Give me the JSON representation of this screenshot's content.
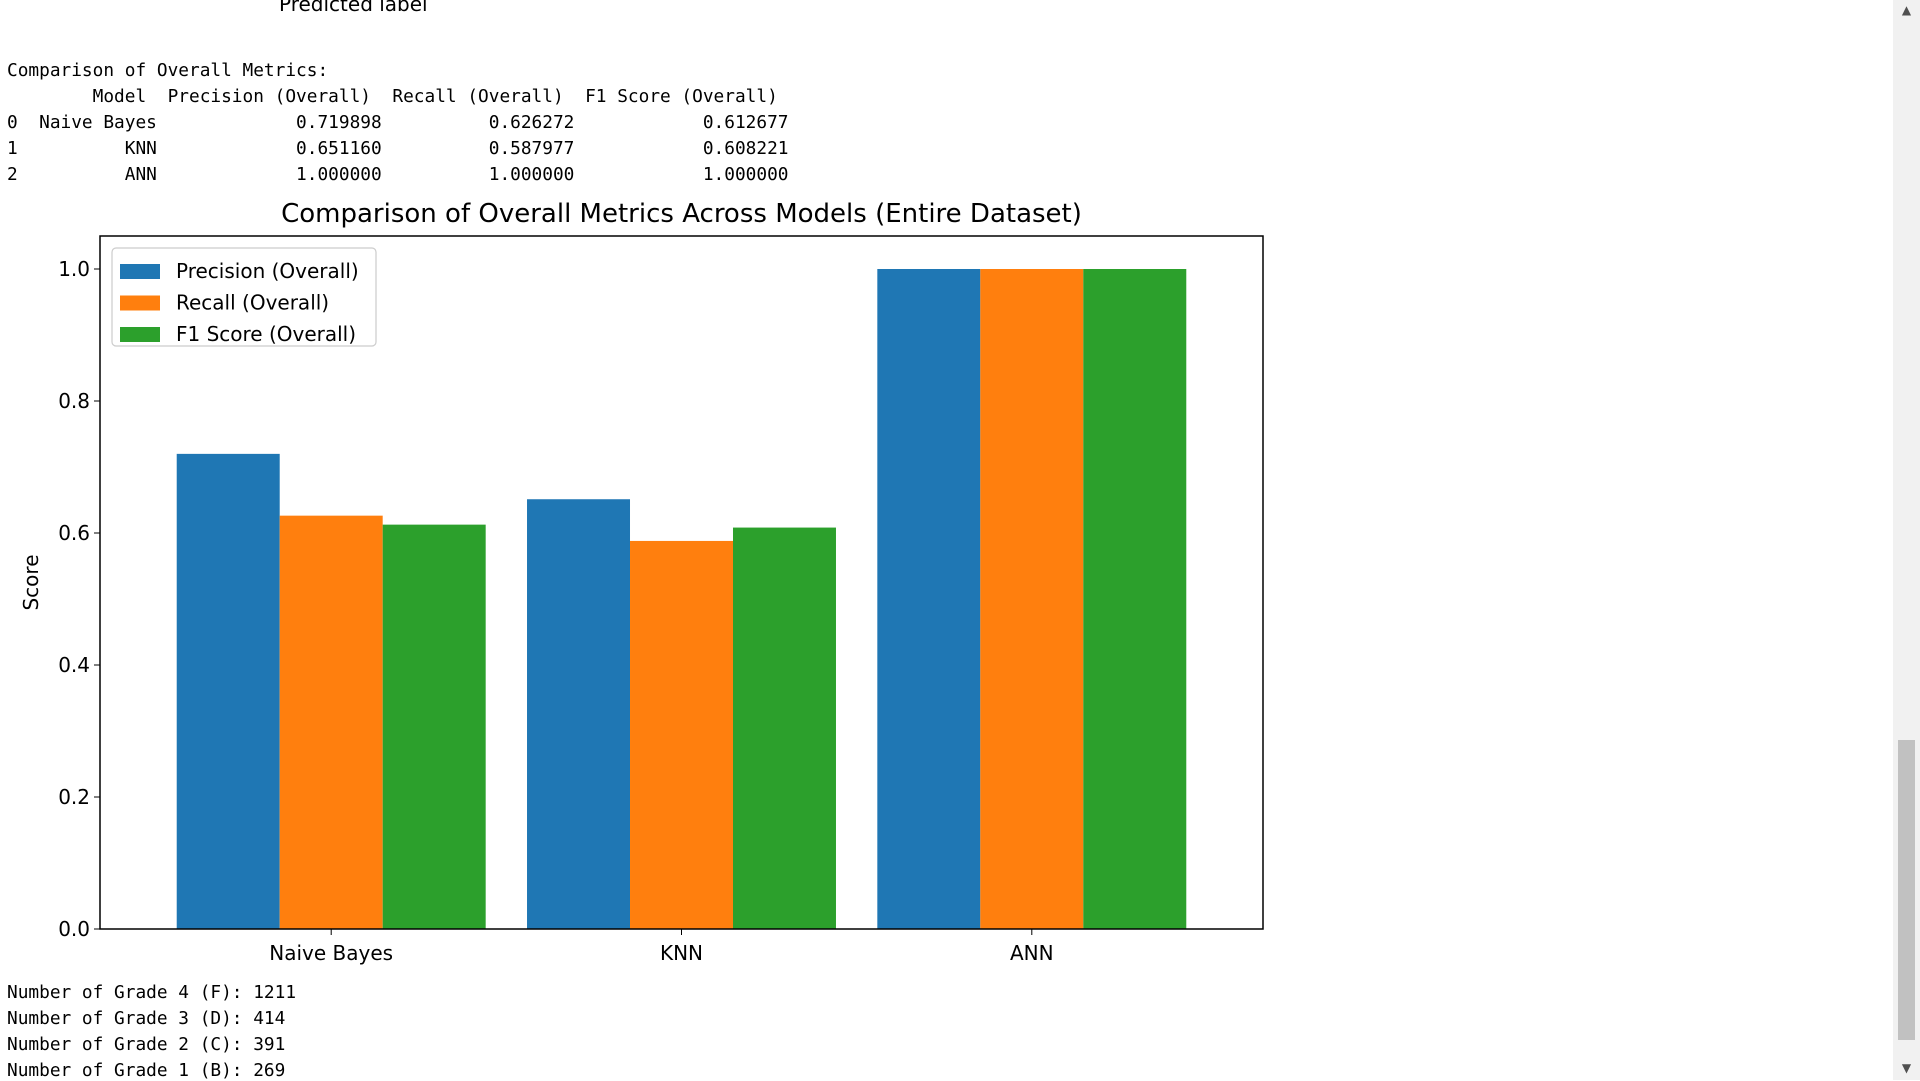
{
  "output": {
    "cutoff_label": "Predicted label",
    "table_title": "Comparison of Overall Metrics:",
    "table_header": "        Model  Precision (Overall)  Recall (Overall)  F1 Score (Overall)",
    "table_rows": [
      "0  Naive Bayes             0.719898          0.626272            0.612677",
      "1          KNN             0.651160          0.587977            0.608221",
      "2          ANN             1.000000          1.000000            1.000000"
    ],
    "grade_lines": [
      "Number of Grade 4 (F): 1211",
      "Number of Grade 3 (D): 414",
      "Number of Grade 2 (C): 391",
      "Number of Grade 1 (B): 269"
    ]
  },
  "chart_data": {
    "type": "bar",
    "title": "Comparison of Overall Metrics Across Models (Entire Dataset)",
    "xlabel": "",
    "ylabel": "Score",
    "categories": [
      "Naive Bayes",
      "KNN",
      "ANN"
    ],
    "series": [
      {
        "name": "Precision (Overall)",
        "values": [
          0.719898,
          0.65116,
          1.0
        ],
        "color": "#1f77b4"
      },
      {
        "name": "Recall (Overall)",
        "values": [
          0.626272,
          0.587977,
          1.0
        ],
        "color": "#ff7f0e"
      },
      {
        "name": "F1 Score (Overall)",
        "values": [
          0.612677,
          0.608221,
          1.0
        ],
        "color": "#2ca02c"
      }
    ],
    "ylim": [
      0,
      1.05
    ],
    "yticks": [
      "0.0",
      "0.2",
      "0.4",
      "0.6",
      "0.8",
      "1.0"
    ],
    "grid": false,
    "legend_position": "top-left"
  },
  "scrollbar": {
    "up_icon": "triangle-up",
    "down_icon": "triangle-down"
  }
}
